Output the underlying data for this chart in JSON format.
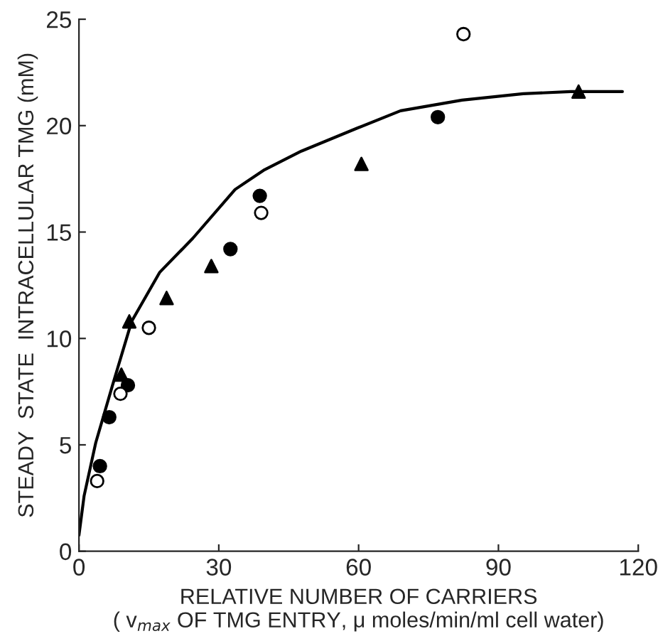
{
  "chart_data": {
    "type": "scatter",
    "xlabel": "RELATIVE NUMBER OF CARRIERS\n( v$_{max}$ OF TMG ENTRY, μ moles/min/ml cell water)",
    "ylabel": "STEADY  STATE  INTRACELLULAR TMG (mM)",
    "xlim": [
      0,
      120
    ],
    "ylim": [
      0,
      25
    ],
    "xticks": [
      0,
      30,
      60,
      90,
      120
    ],
    "yticks": [
      0,
      5,
      10,
      15,
      20,
      25
    ],
    "grid": false,
    "legend": false,
    "series": [
      {
        "marker": "circle",
        "color": "#000000",
        "x": [
          4.5,
          6.5,
          10.5,
          32.5,
          38.8,
          77
        ],
        "values": [
          4.0,
          6.3,
          7.8,
          14.2,
          16.7,
          20.4
        ]
      },
      {
        "marker": "circle",
        "color": "#ffffff",
        "x": [
          3.9,
          8.9,
          15,
          39.1,
          82.5
        ],
        "values": [
          3.3,
          7.4,
          10.5,
          15.9,
          24.3
        ]
      },
      {
        "marker": "triangle",
        "color": "#000000",
        "x": [
          9.1,
          10.8,
          18.8,
          28.4,
          60.6,
          107.2
        ],
        "values": [
          8.3,
          10.8,
          11.9,
          13.4,
          18.2,
          21.6
        ]
      },
      {
        "type": "line",
        "marker": "none",
        "line_style": "solid",
        "color": "#000000",
        "x": [
          0,
          1.1,
          3.6,
          7.2,
          11.3,
          17.3,
          24.4,
          33.5,
          39.6,
          47.7,
          59.9,
          69,
          82.2,
          95.3,
          105.5,
          116.6
        ],
        "values": [
          0.75,
          2.6,
          5.1,
          7.8,
          10.8,
          13.1,
          14.7,
          17.0,
          17.9,
          18.8,
          19.9,
          20.7,
          21.2,
          21.5,
          21.6,
          21.6
        ]
      }
    ]
  }
}
